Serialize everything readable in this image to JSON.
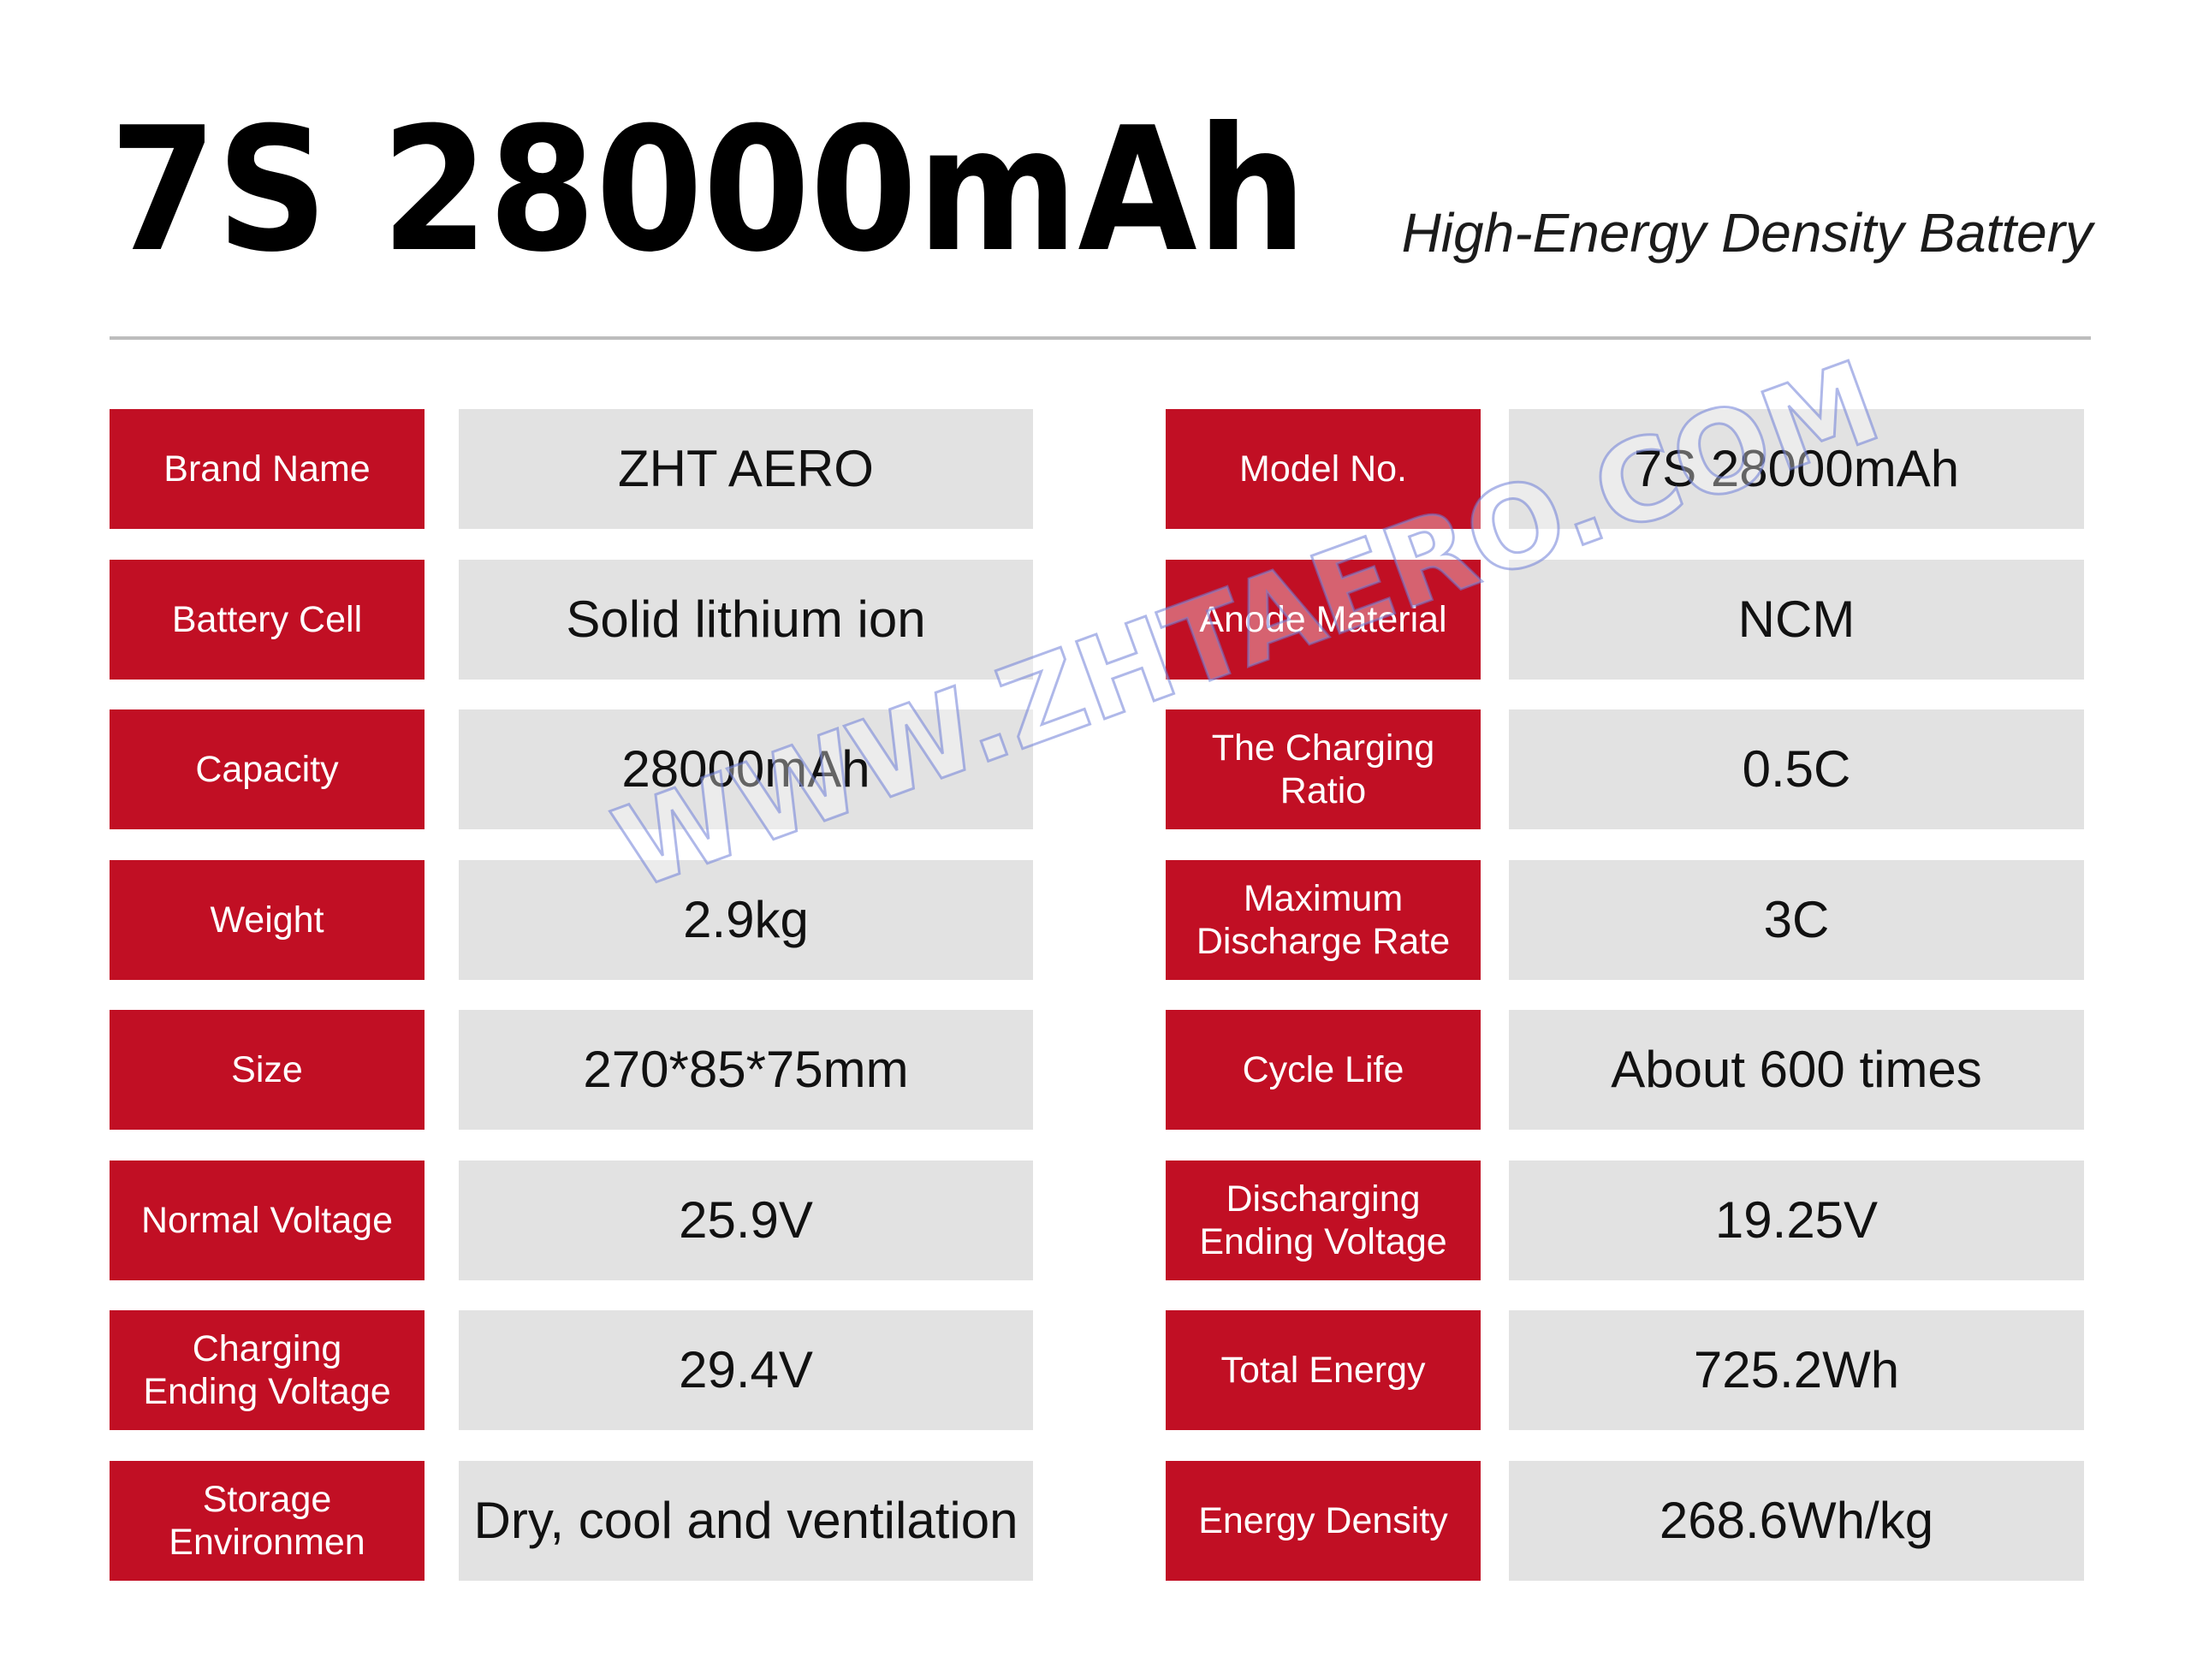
{
  "header": {
    "title": "7S 28000mAh",
    "subtitle": "High-Energy Density Battery"
  },
  "specs": {
    "left": [
      {
        "label": "Brand Name",
        "value": "ZHT AERO"
      },
      {
        "label": "Battery Cell",
        "value": "Solid lithium ion"
      },
      {
        "label": "Capacity",
        "value": "28000mAh"
      },
      {
        "label": "Weight",
        "value": "2.9kg"
      },
      {
        "label": "Size",
        "value": "270*85*75mm"
      },
      {
        "label": "Normal Voltage",
        "value": "25.9V"
      },
      {
        "label": "Charging\nEnding Voltage",
        "value": "29.4V"
      },
      {
        "label": "Storage\nEnvironmen",
        "value": "Dry, cool and ventilation"
      }
    ],
    "right": [
      {
        "label": "Model No.",
        "value": "7S 28000mAh"
      },
      {
        "label": "Anode Material",
        "value": "NCM"
      },
      {
        "label": "The Charging\nRatio",
        "value": "0.5C"
      },
      {
        "label": "Maximum\nDischarge Rate",
        "value": "3C"
      },
      {
        "label": "Cycle Life",
        "value": "About 600 times"
      },
      {
        "label": "Discharging\nEnding Voltage",
        "value": "19.25V"
      },
      {
        "label": "Total Energy",
        "value": "725.2Wh"
      },
      {
        "label": "Energy Density",
        "value": "268.6Wh/kg"
      }
    ]
  },
  "watermark": {
    "text": "WWW.ZHTAERO.COM"
  },
  "colors": {
    "label_bg": "#c10f24",
    "value_bg": "#e2e2e2",
    "divider": "#bdbdbd"
  }
}
